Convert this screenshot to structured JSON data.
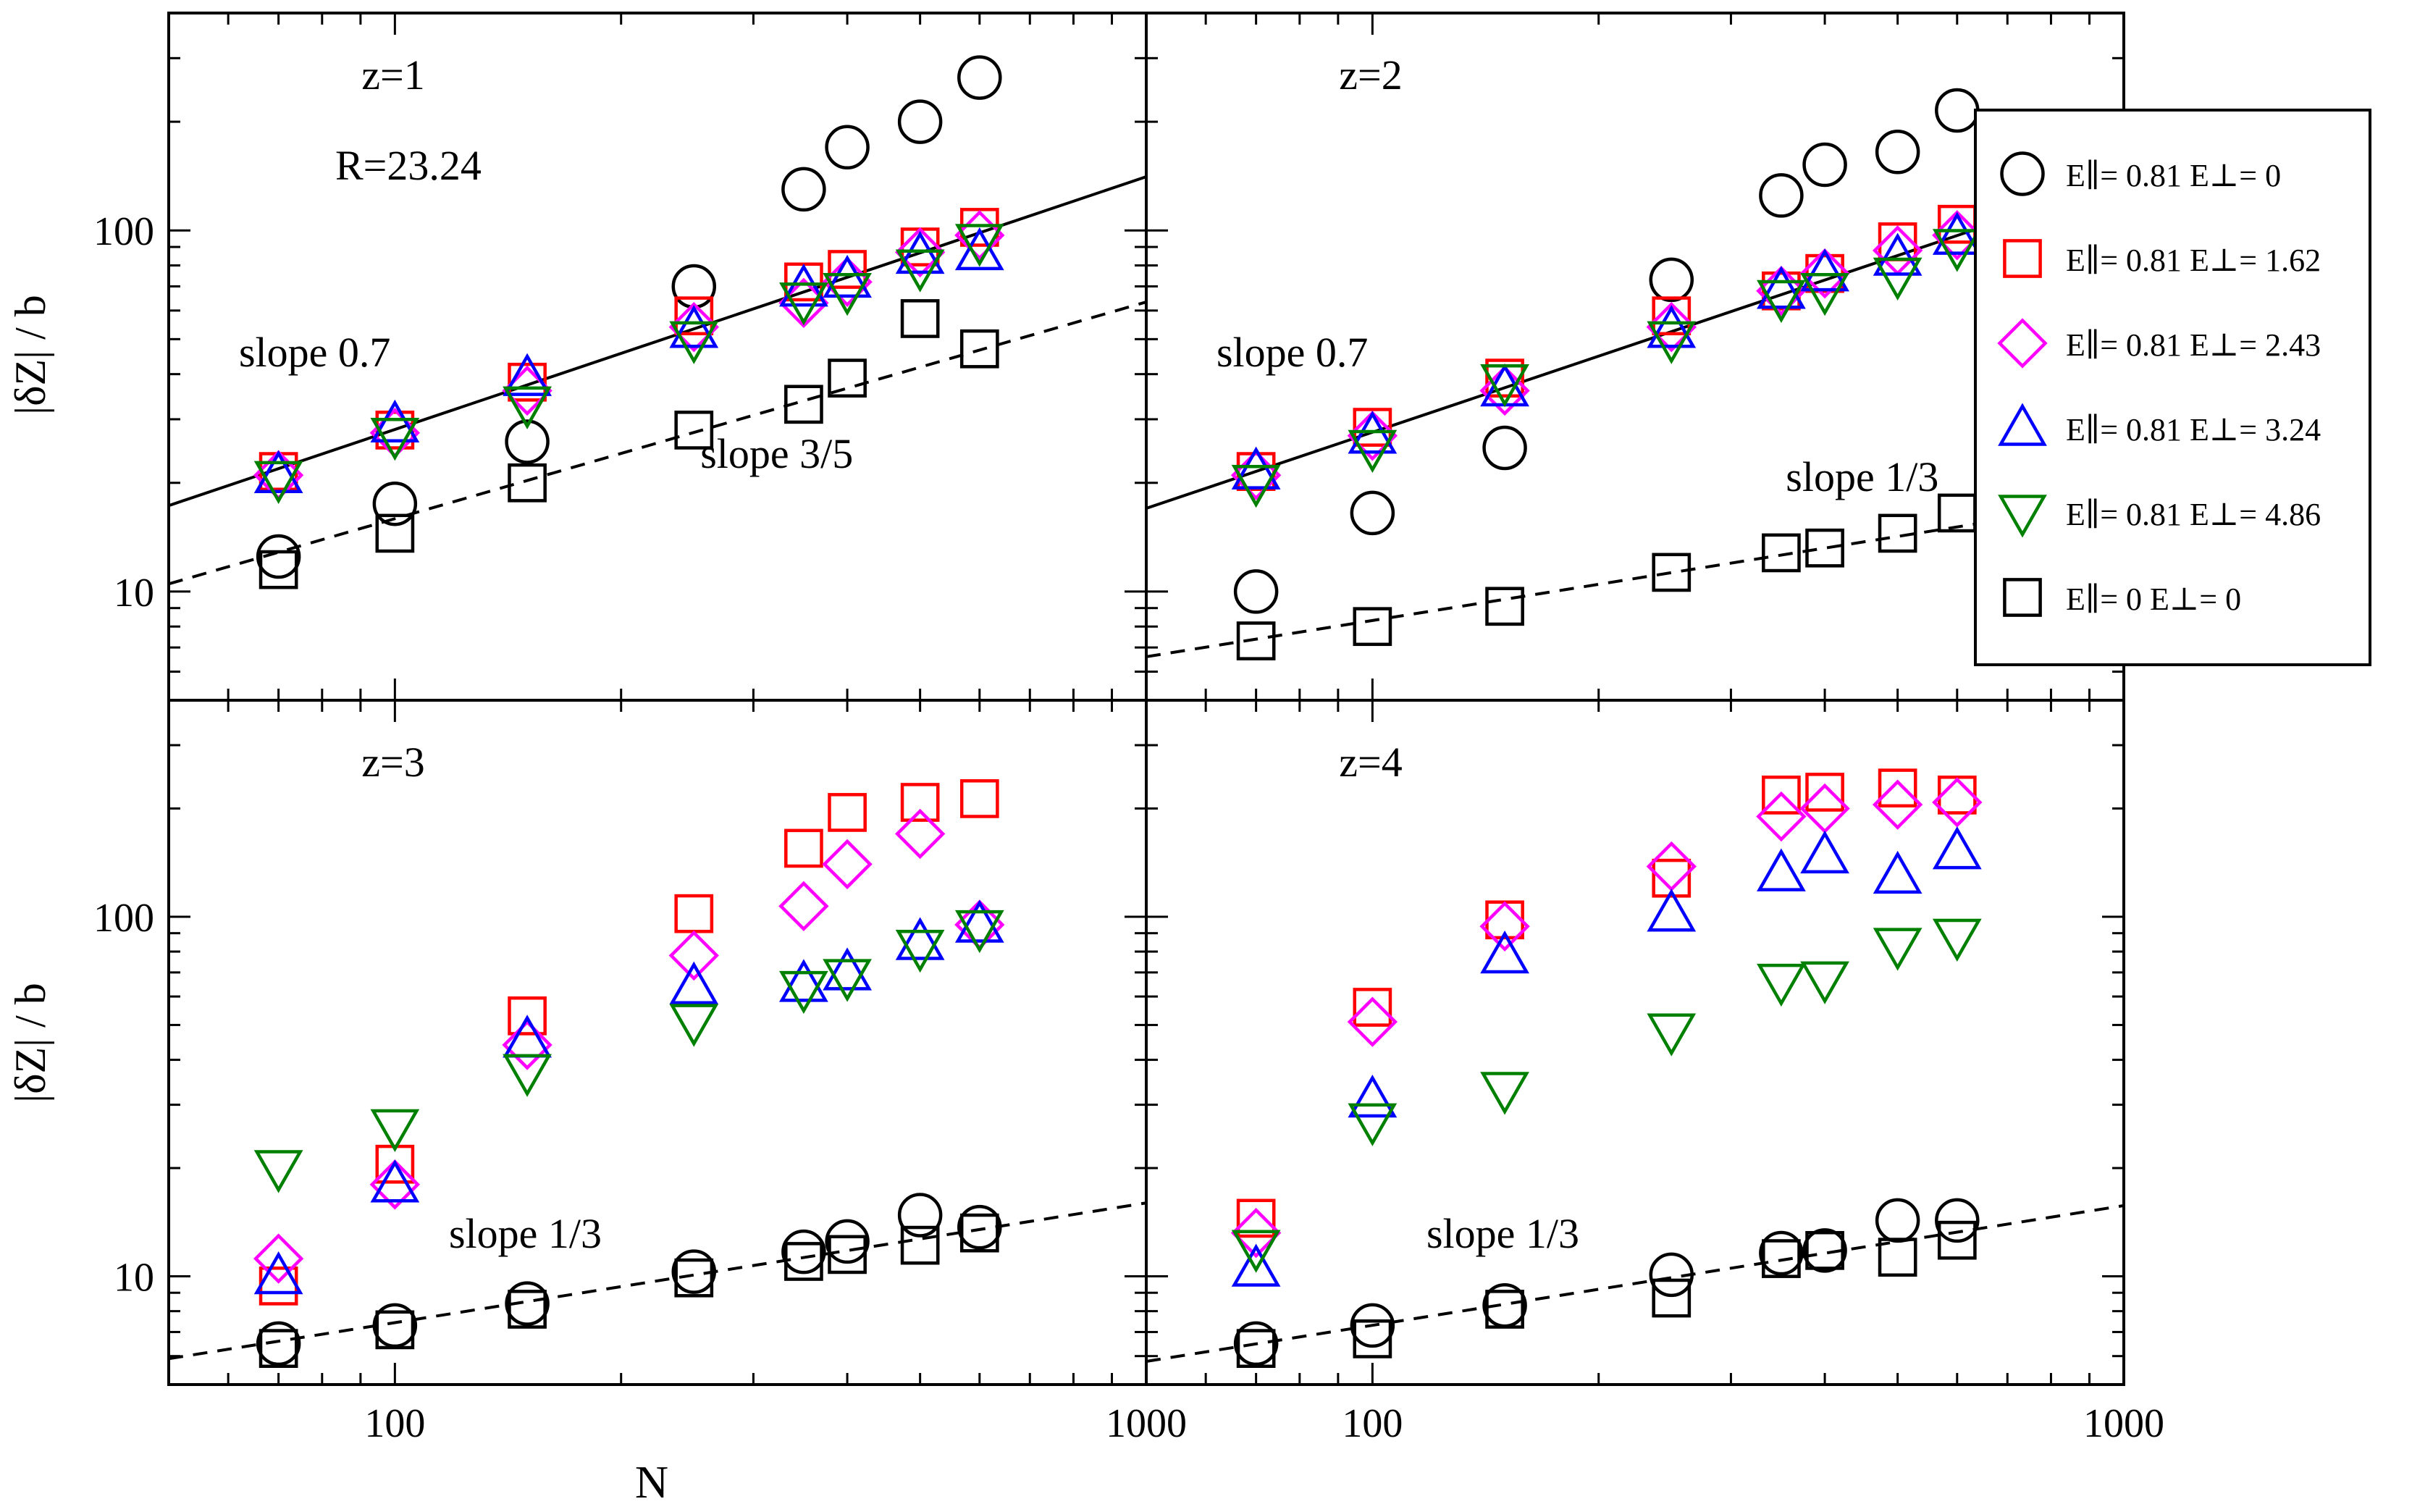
{
  "chart_data": {
    "type": "scatter",
    "x_label": "N",
    "y_label": "|δZ| / b",
    "x_scale": "log",
    "y_scale": "log",
    "x_range": [
      50,
      1000
    ],
    "y_range_top": [
      5,
      400
    ],
    "y_range_bottom": [
      5,
      400
    ],
    "x_ticks": [
      "100",
      "1000"
    ],
    "y_ticks": [
      "10",
      "100"
    ],
    "legend": [
      {
        "key": "c",
        "label": "E∥= 0.81  E⊥= 0",
        "marker": "circle",
        "color": "#000000"
      },
      {
        "key": "r",
        "label": "E∥= 0.81  E⊥= 1.62",
        "marker": "square",
        "color": "#ff0000"
      },
      {
        "key": "m",
        "label": "E∥= 0.81  E⊥= 2.43",
        "marker": "diamond",
        "color": "#ff00ff"
      },
      {
        "key": "b",
        "label": "E∥= 0.81  E⊥= 3.24",
        "marker": "triangle-up",
        "color": "#0000ff"
      },
      {
        "key": "g",
        "label": "E∥= 0.81  E⊥= 4.86",
        "marker": "triangle-down",
        "color": "#008000"
      },
      {
        "key": "k",
        "label": "E∥= 0  E⊥= 0",
        "marker": "square",
        "color": "#000000"
      }
    ],
    "panels": [
      {
        "label": "z=1",
        "label2": "R=23.24",
        "N": [
          70,
          100,
          150,
          250,
          350,
          400,
          500,
          600
        ],
        "series": {
          "c": [
            12.5,
            17.5,
            26,
            70,
            130,
            170,
            200,
            265
          ],
          "r": [
            21.5,
            28,
            38,
            58,
            72,
            78,
            90,
            102
          ],
          "m": [
            21,
            27.5,
            36,
            54,
            63,
            72,
            87,
            97
          ],
          "b": [
            21,
            29,
            39,
            53,
            69,
            73,
            85,
            87
          ],
          "g": [
            20.5,
            27,
            33,
            50,
            64,
            68,
            79,
            93
          ],
          "k": [
            11.5,
            14.5,
            20,
            28,
            33,
            39,
            57,
            47
          ]
        },
        "lines": [
          {
            "style": "solid",
            "slope": 0.7,
            "x0": 50,
            "y0": 17.3
          },
          {
            "style": "dashed",
            "slope": 0.6,
            "x0": 50,
            "y0": 10.5
          }
        ],
        "annotations": [
          {
            "text": "slope 0.7",
            "x": 62,
            "y": 42
          },
          {
            "text": "slope 3/5",
            "x": 255,
            "y": 22
          }
        ]
      },
      {
        "label": "z=2",
        "N": [
          70,
          100,
          150,
          250,
          350,
          400,
          500,
          600
        ],
        "series": {
          "c": [
            10,
            16.5,
            25,
            73,
            125,
            152,
            165,
            215
          ],
          "r": [
            21.5,
            28.5,
            39,
            58,
            68,
            76,
            93,
            104
          ],
          "m": [
            21,
            27,
            36,
            54,
            68,
            76,
            88,
            97
          ],
          "b": [
            21.5,
            27,
            36.5,
            53,
            68,
            76,
            84,
            96
          ],
          "g": [
            20,
            25,
            38,
            50,
            65,
            68,
            75,
            90
          ],
          "k": [
            7.3,
            8,
            9.1,
            11.3,
            12.8,
            13.2,
            14.5,
            16.5
          ]
        },
        "lines": [
          {
            "style": "solid",
            "slope": 0.7,
            "x0": 50,
            "y0": 17
          },
          {
            "style": "dashed",
            "slope": 0.333,
            "x0": 50,
            "y0": 6.6
          }
        ],
        "annotations": [
          {
            "text": "slope 0.7",
            "x": 62,
            "y": 42
          },
          {
            "text": "slope 1/3",
            "x": 355,
            "y": 19
          }
        ]
      },
      {
        "label": "z=3",
        "N": [
          70,
          100,
          150,
          250,
          350,
          400,
          500,
          600
        ],
        "series": {
          "c": [
            6.5,
            7.3,
            8.4,
            10.3,
            11.7,
            12.5,
            14.8,
            13.7
          ],
          "r": [
            9.4,
            20.5,
            53,
            102,
            155,
            195,
            208,
            213
          ],
          "m": [
            11.2,
            18,
            44,
            78,
            107,
            140,
            170,
            95
          ],
          "b": [
            10,
            18,
            45.5,
            64,
            65,
            70,
            85,
            95
          ],
          "g": [
            20,
            26,
            37,
            51,
            63,
            68,
            82,
            93
          ],
          "k": [
            6.3,
            7.1,
            8.1,
            9.9,
            11,
            11.5,
            12.2,
            13.2
          ]
        },
        "lines": [
          {
            "style": "dashed",
            "slope": 0.333,
            "x0": 50,
            "y0": 5.9
          }
        ],
        "annotations": [
          {
            "text": "slope 1/3",
            "x": 118,
            "y": 12
          }
        ]
      },
      {
        "label": "z=4",
        "N": [
          70,
          100,
          150,
          250,
          350,
          400,
          500,
          600
        ],
        "series": {
          "c": [
            6.5,
            7.3,
            8.3,
            10.1,
            11.6,
            11.8,
            14.3,
            14.3
          ],
          "r": [
            14.5,
            56,
            98,
            128,
            218,
            222,
            228,
            218
          ],
          "m": [
            13.2,
            51,
            94,
            138,
            190,
            200,
            205,
            208
          ],
          "b": [
            10.5,
            31,
            78,
            102,
            132,
            148,
            130,
            152
          ],
          "g": [
            12,
            27,
            33,
            48,
            66,
            67,
            83,
            88
          ],
          "k": [
            6.3,
            6.7,
            8.1,
            8.7,
            11.2,
            11.8,
            11.3,
            12.6
          ]
        },
        "lines": [
          {
            "style": "dashed",
            "slope": 0.333,
            "x0": 50,
            "y0": 5.8
          }
        ],
        "annotations": [
          {
            "text": "slope 1/3",
            "x": 118,
            "y": 12
          }
        ]
      }
    ]
  }
}
